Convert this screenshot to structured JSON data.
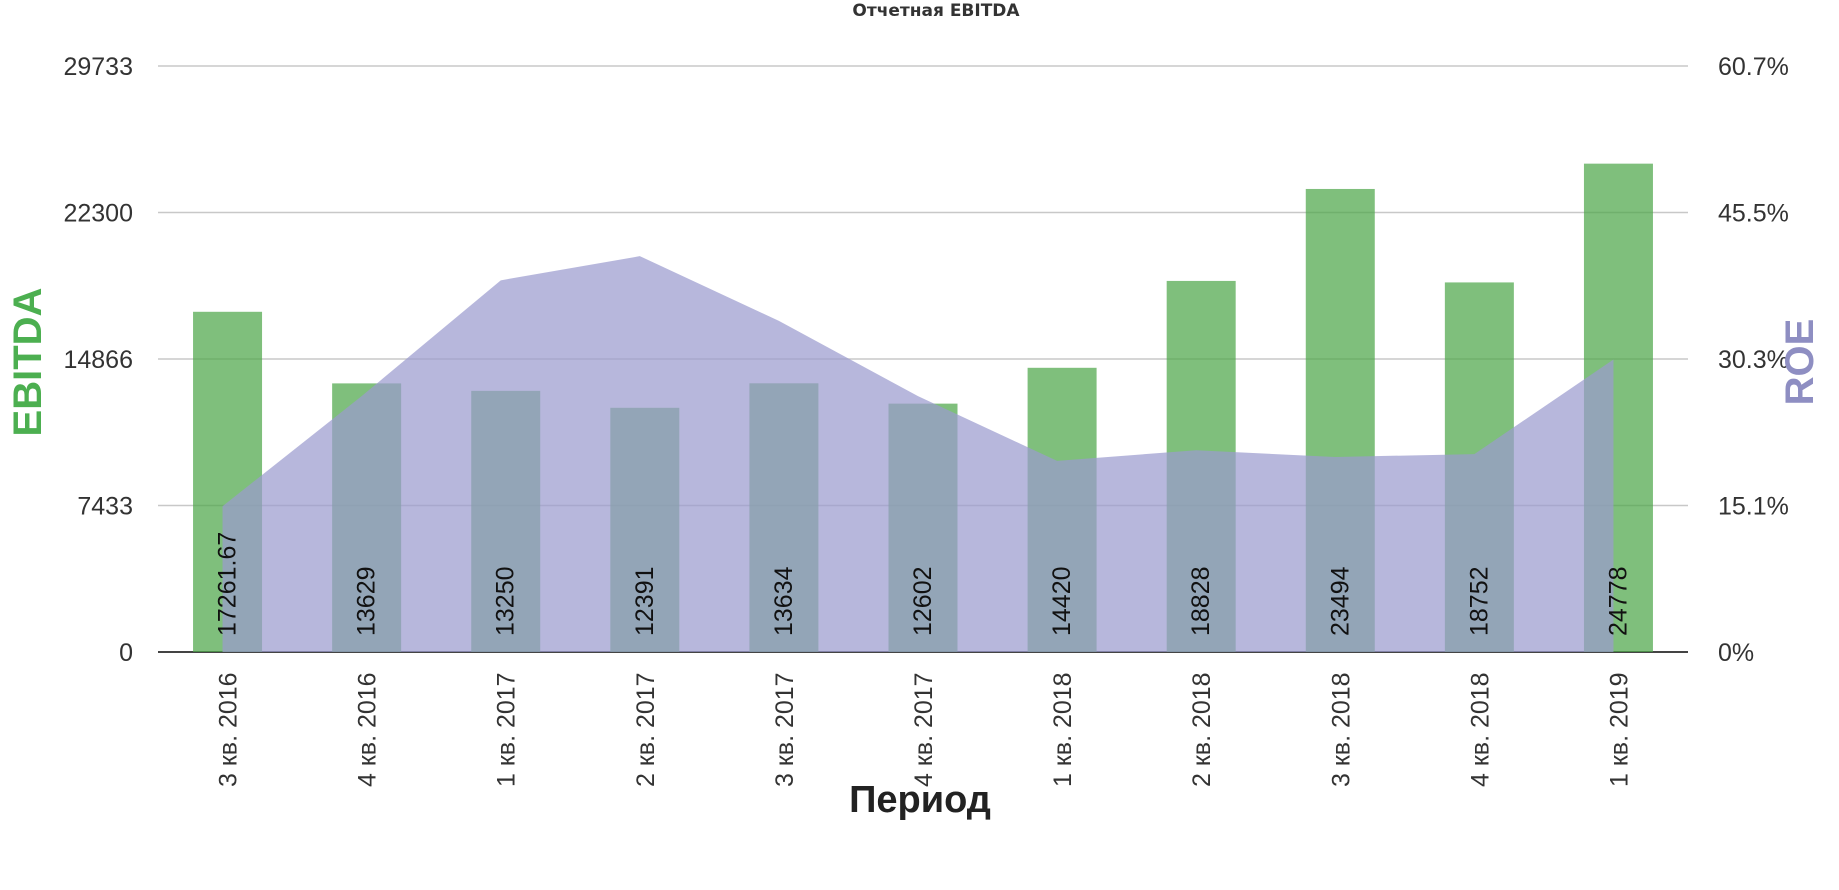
{
  "colors": {
    "bars": "#4ea64a",
    "area": "#9b9bcf",
    "ebitda_title": "#4caf50",
    "roe_title": "#8e8ec2"
  },
  "chart_data": {
    "type": "bar",
    "title": "Отчетная EBITDA",
    "xlabel": "Период",
    "ylabel": "EBITDA",
    "y2label": "ROE",
    "categories": [
      "3 кв. 2016",
      "4 кв. 2016",
      "1 кв. 2017",
      "2 кв. 2017",
      "3 кв. 2017",
      "4 кв. 2017",
      "1 кв. 2018",
      "2 кв. 2018",
      "3 кв. 2018",
      "4 кв. 2018",
      "1 кв. 2019"
    ],
    "series": [
      {
        "name": "EBITDA",
        "type": "bar",
        "axis": "left",
        "values": [
          17261.67,
          13629,
          13250,
          12391,
          13634,
          12602,
          14420,
          18828,
          23494,
          18752,
          24778
        ],
        "data_labels": [
          "17261.67",
          "13629",
          "13250",
          "12391",
          "13634",
          "12602",
          "14420",
          "18828",
          "23494",
          "18752",
          "24778"
        ]
      },
      {
        "name": "ROE",
        "type": "area",
        "axis": "right",
        "values": [
          15.1,
          26.5,
          38.5,
          41.0,
          34.3,
          26.5,
          19.8,
          20.9,
          20.2,
          20.5,
          30.3
        ]
      }
    ],
    "ylim": [
      0,
      29733
    ],
    "y_ticks": [
      "0",
      "7433",
      "14866",
      "22300",
      "29733"
    ],
    "y2lim": [
      0,
      60.7
    ],
    "y2_ticks": [
      "0%",
      "15.1%",
      "30.3%",
      "45.5%",
      "60.7%"
    ],
    "grid": true,
    "legend": "none"
  }
}
